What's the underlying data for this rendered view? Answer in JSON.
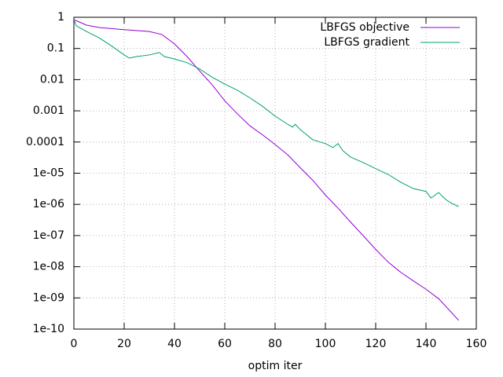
{
  "chart_data": {
    "type": "line",
    "xlabel": "optim iter",
    "xlim": [
      0,
      160
    ],
    "xticks": [
      0,
      20,
      40,
      60,
      80,
      100,
      120,
      140,
      160
    ],
    "ylim": [
      1e-10,
      1
    ],
    "ylog": true,
    "yticks": [
      1,
      0.1,
      0.01,
      0.001,
      0.0001,
      {
        "value": 1e-05,
        "label": "1e-05"
      },
      {
        "value": 1e-06,
        "label": "1e-06"
      },
      {
        "value": 1e-07,
        "label": "1e-07"
      },
      {
        "value": 1e-08,
        "label": "1e-08"
      },
      {
        "value": 1e-09,
        "label": "1e-09"
      },
      {
        "value": 1e-10,
        "label": "1e-10"
      }
    ],
    "grid": true,
    "legend": "top right",
    "series": [
      {
        "name": "LBFGS objective",
        "color": "#9400d3",
        "x": [
          0,
          5,
          10,
          20,
          30,
          35,
          40,
          45,
          50,
          55,
          60,
          65,
          70,
          75,
          80,
          85,
          90,
          95,
          100,
          105,
          110,
          115,
          120,
          125,
          130,
          135,
          140,
          145,
          150,
          153
        ],
        "values": [
          0.84,
          0.56,
          0.47,
          0.4,
          0.35,
          0.28,
          0.14,
          0.055,
          0.019,
          0.0068,
          0.0021,
          0.0008,
          0.00033,
          0.00017,
          8.3e-05,
          3.9e-05,
          1.5e-05,
          5.9e-06,
          2e-06,
          7.6e-07,
          2.7e-07,
          1e-07,
          3.6e-08,
          1.4e-08,
          6.6e-09,
          3.5e-09,
          1.9e-09,
          9.5e-10,
          3.5e-10,
          1.9e-10
        ]
      },
      {
        "name": "LBFGS gradient",
        "color": "#009e73",
        "x": [
          0,
          1,
          5,
          10,
          15,
          20,
          22,
          25,
          30,
          34,
          36,
          40,
          45,
          50,
          55,
          60,
          65,
          70,
          75,
          80,
          85,
          87,
          88,
          90,
          95,
          100,
          103,
          105,
          107,
          110,
          115,
          120,
          125,
          130,
          135,
          140,
          142,
          145,
          148,
          150,
          153
        ],
        "values": [
          0.84,
          0.53,
          0.35,
          0.22,
          0.12,
          0.062,
          0.049,
          0.055,
          0.062,
          0.074,
          0.055,
          0.046,
          0.035,
          0.022,
          0.012,
          0.0072,
          0.0046,
          0.0026,
          0.0014,
          0.00068,
          0.00037,
          0.0003,
          0.00037,
          0.00025,
          0.000118,
          8.9e-05,
          6.6e-05,
          8.9e-05,
          5.2e-05,
          3.3e-05,
          2.2e-05,
          1.4e-05,
          9.1e-06,
          5.1e-06,
          3.2e-06,
          2.6e-06,
          1.6e-06,
          2.4e-06,
          1.4e-06,
          1.1e-06,
          8.5e-07
        ]
      }
    ]
  }
}
